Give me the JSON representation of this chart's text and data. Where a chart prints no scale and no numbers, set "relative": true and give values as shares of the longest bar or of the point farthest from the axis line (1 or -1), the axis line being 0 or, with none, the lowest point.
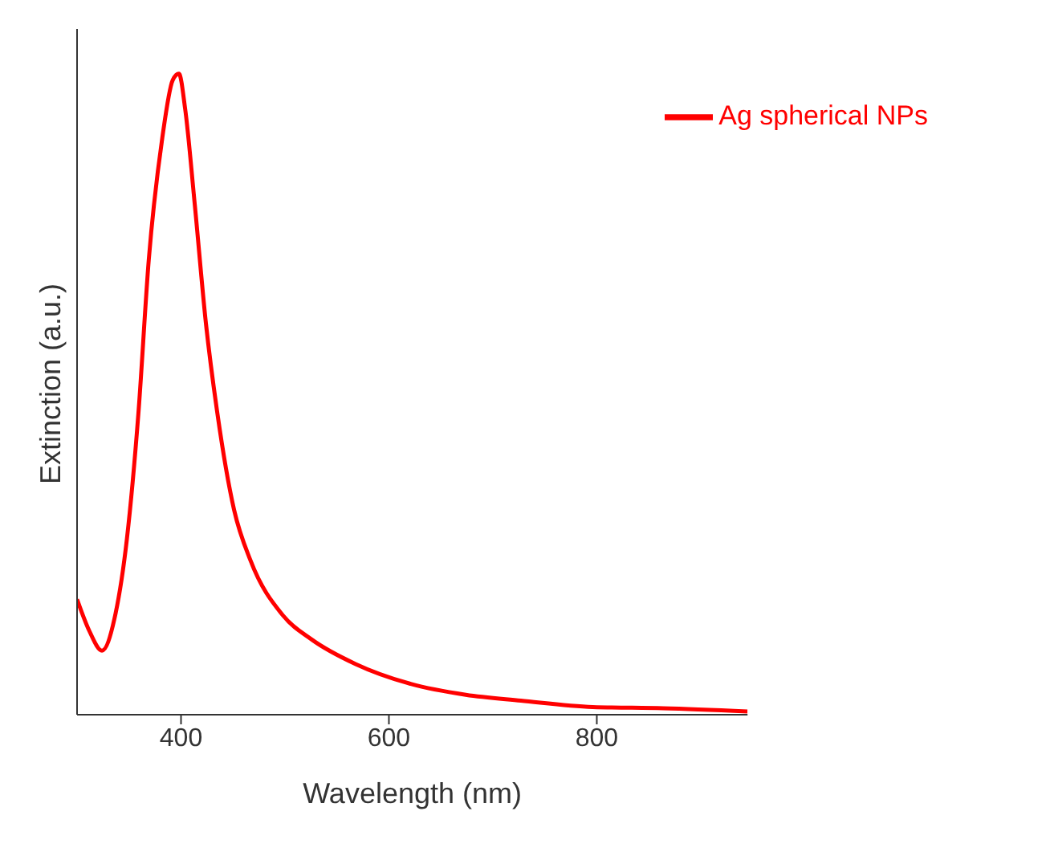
{
  "chart_data": {
    "type": "line",
    "xlabel": "Wavelength (nm)",
    "ylabel": "Extinction (a.u.)",
    "relative": true,
    "xlim": [
      300,
      945
    ],
    "xticks": [
      400,
      600,
      800
    ],
    "legend": "top right",
    "marker": "none",
    "line_style": "solid",
    "series": [
      {
        "name": "Ag spherical NPs",
        "color": "#ff0000",
        "x": [
          300,
          312,
          324,
          336,
          348,
          359,
          369,
          382,
          392,
          398,
          404,
          413,
          424,
          435,
          451,
          467,
          498,
          526,
          568,
          621,
          674,
          727,
          796,
          864,
          945
        ],
        "values": [
          0.18,
          0.13,
          0.1,
          0.15,
          0.275,
          0.47,
          0.71,
          0.9,
          0.99,
          1.0,
          0.945,
          0.8,
          0.61,
          0.47,
          0.32,
          0.24,
          0.155,
          0.117,
          0.079,
          0.048,
          0.031,
          0.022,
          0.012,
          0.01,
          0.005
        ]
      }
    ]
  }
}
